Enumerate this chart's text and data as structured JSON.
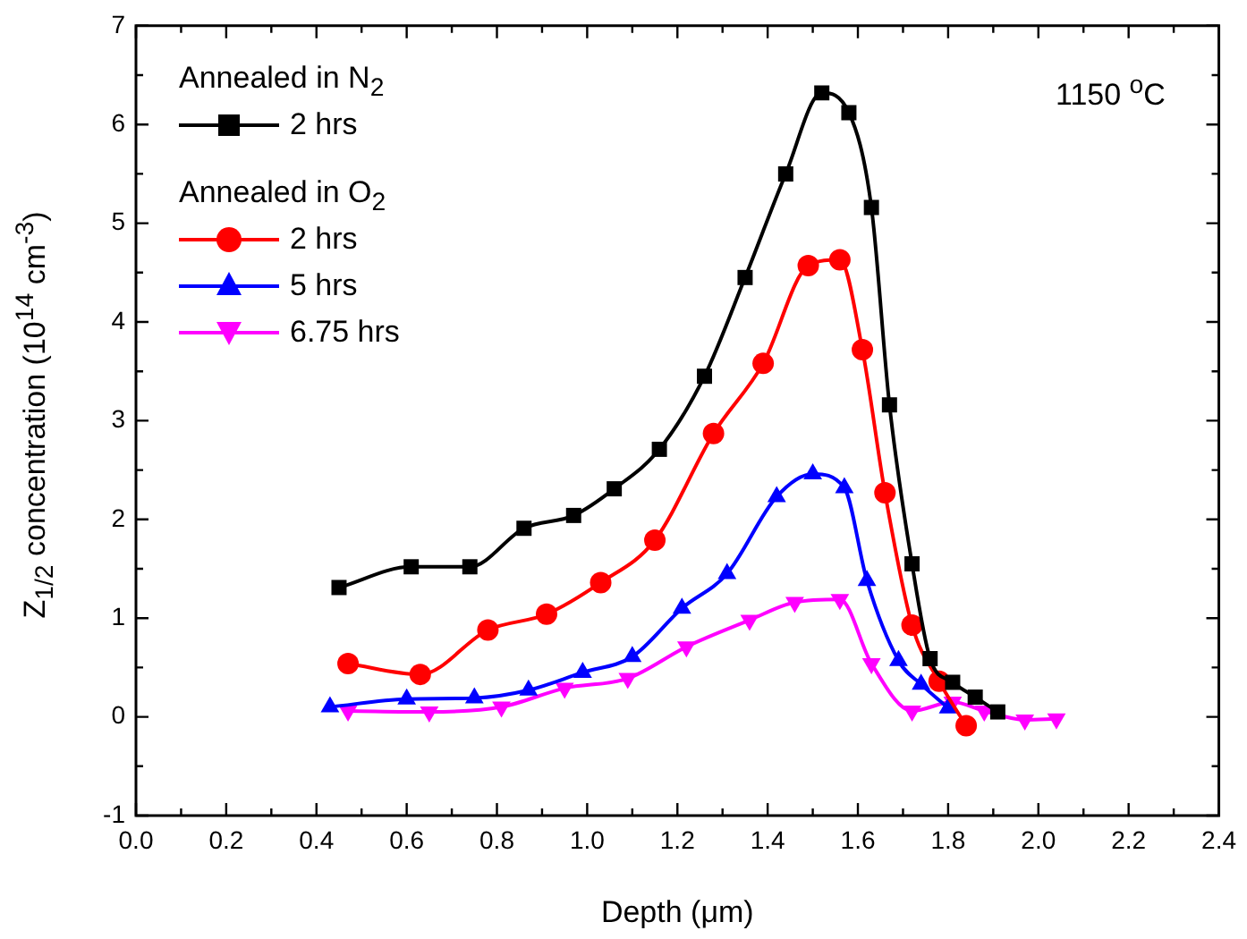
{
  "chart_data": {
    "type": "line",
    "xlabel": "Depth (μm)",
    "ylabel": "Z$_{1/2}$ concentration (10$^{14}$ cm$^{-3}$)",
    "xlim": [
      0,
      2.4
    ],
    "xticks": [
      {
        "value": 0,
        "label": "0.0"
      },
      {
        "value": 0.1,
        "label": null
      },
      {
        "value": 0.2,
        "label": "0.2"
      },
      {
        "value": 0.3,
        "label": null
      },
      {
        "value": 0.4,
        "label": "0.4"
      },
      {
        "value": 0.5,
        "label": null
      },
      {
        "value": 0.6,
        "label": "0.6"
      },
      {
        "value": 0.7,
        "label": null
      },
      {
        "value": 0.8,
        "label": "0.8"
      },
      {
        "value": 0.9,
        "label": null
      },
      {
        "value": 1,
        "label": "1.0"
      },
      {
        "value": 1.1,
        "label": null
      },
      {
        "value": 1.2,
        "label": "1.2"
      },
      {
        "value": 1.3,
        "label": null
      },
      {
        "value": 1.4,
        "label": "1.4"
      },
      {
        "value": 1.5,
        "label": null
      },
      {
        "value": 1.6,
        "label": "1.6"
      },
      {
        "value": 1.7,
        "label": null
      },
      {
        "value": 1.8,
        "label": "1.8"
      },
      {
        "value": 1.9,
        "label": null
      },
      {
        "value": 2,
        "label": "2.0"
      },
      {
        "value": 2.1,
        "label": null
      },
      {
        "value": 2.2,
        "label": "2.2"
      },
      {
        "value": 2.3,
        "label": null
      },
      {
        "value": 2.4,
        "label": "2.4"
      }
    ],
    "ylim": [
      -1,
      7
    ],
    "yticks": [
      -1,
      {
        "value": -0.5,
        "label": null
      },
      0,
      {
        "value": 0.5,
        "label": null
      },
      1,
      {
        "value": 1.5,
        "label": null
      },
      2,
      {
        "value": 2.5,
        "label": null
      },
      3,
      {
        "value": 3.5,
        "label": null
      },
      4,
      {
        "value": 4.5,
        "label": null
      },
      5,
      {
        "value": 5.5,
        "label": null
      },
      6,
      {
        "value": 6.5,
        "label": null
      },
      7
    ],
    "grid": false,
    "legend": "top left",
    "line_style": "solid",
    "annotations": [
      "Annealed in N$_{2}$",
      "Annealed in O$_{2}$",
      "1150 $^{o}$C"
    ],
    "series": [
      {
        "name": "2 hrs",
        "color": "#000000",
        "marker": "square",
        "x": [
          0.45,
          0.61,
          0.74,
          0.86,
          0.97,
          1.06,
          1.16,
          1.26,
          1.35,
          1.44,
          1.52,
          1.58,
          1.63,
          1.67,
          1.72,
          1.76,
          1.81,
          1.86,
          1.91
        ],
        "values": [
          1.31,
          1.52,
          1.52,
          1.91,
          2.04,
          2.31,
          2.71,
          3.45,
          4.45,
          5.5,
          6.32,
          6.12,
          5.16,
          3.16,
          1.55,
          0.59,
          0.35,
          0.2,
          0.05
        ]
      },
      {
        "name": "2 hrs",
        "color": "#ff0000",
        "marker": "circle",
        "x": [
          0.47,
          0.63,
          0.78,
          0.91,
          1.03,
          1.15,
          1.28,
          1.39,
          1.49,
          1.56,
          1.61,
          1.66,
          1.72,
          1.78,
          1.84
        ],
        "values": [
          0.54,
          0.43,
          0.88,
          1.04,
          1.36,
          1.79,
          2.87,
          3.58,
          4.57,
          4.63,
          3.72,
          2.27,
          0.93,
          0.36,
          -0.09
        ]
      },
      {
        "name": "5 hrs",
        "color": "#0000ff",
        "marker": "triangle",
        "x": [
          0.43,
          0.6,
          0.75,
          0.87,
          0.99,
          1.1,
          1.21,
          1.31,
          1.42,
          1.5,
          1.57,
          1.62,
          1.69,
          1.74,
          1.8
        ],
        "values": [
          0.1,
          0.18,
          0.19,
          0.27,
          0.45,
          0.61,
          1.1,
          1.45,
          2.23,
          2.46,
          2.32,
          1.38,
          0.57,
          0.33,
          0.09
        ]
      },
      {
        "name": "6.75 hrs",
        "color": "#ff00ff",
        "marker": "triangle-down",
        "x": [
          0.47,
          0.65,
          0.81,
          0.95,
          1.09,
          1.22,
          1.36,
          1.46,
          1.56,
          1.63,
          1.72,
          1.81,
          1.88,
          1.97,
          2.04
        ],
        "values": [
          0.06,
          0.05,
          0.1,
          0.29,
          0.39,
          0.71,
          0.98,
          1.16,
          1.19,
          0.54,
          0.06,
          0.15,
          0.06,
          -0.03,
          -0.02
        ]
      }
    ]
  }
}
